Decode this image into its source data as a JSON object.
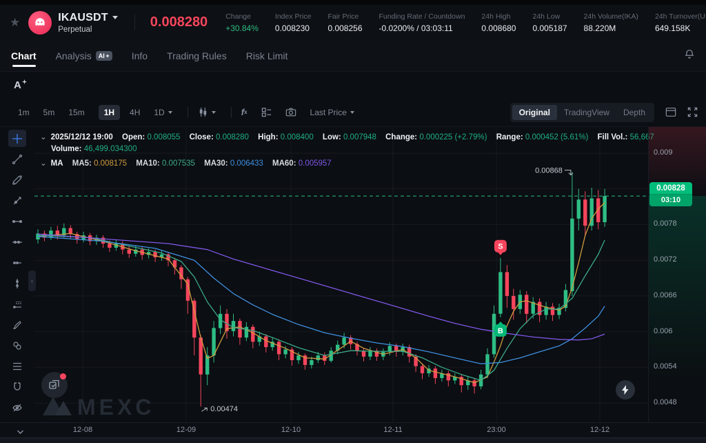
{
  "header": {
    "symbol": "IKAUSDT",
    "market_type": "Perpetual",
    "last_price": "0.008280",
    "stats": [
      {
        "label": "Change",
        "value": "+30.84%"
      },
      {
        "label": "Index Price",
        "value": "0.008230"
      },
      {
        "label": "Fair Price",
        "value": "0.008256"
      },
      {
        "label": "Funding Rate / Countdown",
        "value": "-0.0200% / 03:03:11"
      },
      {
        "label": "24h High",
        "value": "0.008680"
      },
      {
        "label": "24h Low",
        "value": "0.005187"
      },
      {
        "label": "24h Volume(IKA)",
        "value": "88.220M"
      },
      {
        "label": "24h Turnover(USDT)",
        "value": "649.158K"
      }
    ]
  },
  "tabs": {
    "items": [
      "Chart",
      "Analysis",
      "Info",
      "Trading Rules",
      "Risk Limit"
    ],
    "active": "Chart",
    "ai_badge": "AI"
  },
  "toolbar": {
    "timeframes": [
      "1m",
      "5m",
      "15m",
      "1H",
      "4H",
      "1D"
    ],
    "active_timeframe": "1H",
    "price_source": "Last Price",
    "view_modes": [
      "Original",
      "TradingView",
      "Depth"
    ],
    "active_view": "Original"
  },
  "ohlc": {
    "datetime": "2025/12/12 19:00",
    "items": [
      {
        "label": "Open:",
        "value": "0.008055"
      },
      {
        "label": "Close:",
        "value": "0.008280"
      },
      {
        "label": "High:",
        "value": "0.008400"
      },
      {
        "label": "Low:",
        "value": "0.007948"
      },
      {
        "label": "Change:",
        "value": "0.000225 (+2.79%)"
      },
      {
        "label": "Range:",
        "value": "0.000452 (5.61%)"
      },
      {
        "label": "Fill Vol.:",
        "value": "56,667"
      }
    ],
    "volume_label": "Volume:",
    "volume_value": "46,499.034300"
  },
  "ma_legend": {
    "title": "MA",
    "items": [
      {
        "label": "MA5:",
        "value": "0.008175",
        "color": "#cf9b3f"
      },
      {
        "label": "MA10:",
        "value": "0.007535",
        "color": "#3cab8a"
      },
      {
        "label": "MA30:",
        "value": "0.006433",
        "color": "#3f8fe0"
      },
      {
        "label": "MA60:",
        "value": "0.005957",
        "color": "#7e57e6"
      }
    ]
  },
  "price_axis_badge": {
    "price": "0.00828",
    "countdown": "03:10"
  },
  "watermark": "MEXC",
  "chart_data": {
    "type": "candlestick",
    "symbol": "IKAUSDT",
    "timeframe": "1H",
    "current_price": 0.00828,
    "high_annotation": 0.00868,
    "low_annotation": 0.00474,
    "up_color": "#2ebd85",
    "down_color": "#f5455c",
    "price_line_color": "#2ebd85",
    "y_axis": {
      "ticks": [
        {
          "label": "0.009",
          "price": 0.009
        },
        {
          "label": "0.0078",
          "price": 0.0078
        },
        {
          "label": "0.0072",
          "price": 0.0072
        },
        {
          "label": "0.0066",
          "price": 0.0066
        },
        {
          "label": "0.006",
          "price": 0.006
        },
        {
          "label": "0.0054",
          "price": 0.0054
        },
        {
          "label": "0.0048",
          "price": 0.0048
        }
      ],
      "gridline_prices": [
        0.009,
        0.0084,
        0.0078,
        0.0072,
        0.0066,
        0.006,
        0.0054,
        0.0048
      ]
    },
    "x_axis": {
      "labels": [
        "12-08",
        "12-09",
        "12-10",
        "12-11",
        "23:00",
        "12-12"
      ]
    },
    "candles": {
      "order": [
        "open",
        "close",
        "low",
        "high"
      ],
      "values": [
        [
          0.00755,
          0.00765,
          0.00748,
          0.00772
        ],
        [
          0.00765,
          0.00758,
          0.00752,
          0.0077
        ],
        [
          0.00758,
          0.0077,
          0.00754,
          0.00776
        ],
        [
          0.0077,
          0.00762,
          0.00755,
          0.00778
        ],
        [
          0.00762,
          0.00774,
          0.00758,
          0.00782
        ],
        [
          0.00774,
          0.00764,
          0.00757,
          0.00779
        ],
        [
          0.00764,
          0.00755,
          0.00748,
          0.00768
        ],
        [
          0.00755,
          0.00762,
          0.0075,
          0.00768
        ],
        [
          0.00762,
          0.00752,
          0.00745,
          0.00766
        ],
        [
          0.00752,
          0.00758,
          0.00746,
          0.00763
        ],
        [
          0.00758,
          0.00748,
          0.00741,
          0.00762
        ],
        [
          0.00748,
          0.00741,
          0.00734,
          0.00753
        ],
        [
          0.00741,
          0.00748,
          0.00736,
          0.00754
        ],
        [
          0.00748,
          0.00738,
          0.0073,
          0.00752
        ],
        [
          0.00738,
          0.00731,
          0.00724,
          0.00743
        ],
        [
          0.00731,
          0.00738,
          0.00726,
          0.00744
        ],
        [
          0.00738,
          0.00729,
          0.00721,
          0.00742
        ],
        [
          0.00729,
          0.00734,
          0.00723,
          0.0074
        ],
        [
          0.00734,
          0.00725,
          0.00717,
          0.00738
        ],
        [
          0.00725,
          0.0073,
          0.00719,
          0.00736
        ],
        [
          0.0073,
          0.0072,
          0.0071,
          0.00734
        ],
        [
          0.0072,
          0.00708,
          0.00696,
          0.00724
        ],
        [
          0.00708,
          0.00688,
          0.00672,
          0.00712
        ],
        [
          0.00688,
          0.00652,
          0.0063,
          0.00692
        ],
        [
          0.00652,
          0.0059,
          0.0056,
          0.00656
        ],
        [
          0.0059,
          0.00528,
          0.00474,
          0.00594
        ],
        [
          0.00528,
          0.0056,
          0.0051,
          0.00574
        ],
        [
          0.0056,
          0.00606,
          0.00548,
          0.00618
        ],
        [
          0.00606,
          0.0063,
          0.00596,
          0.00644
        ],
        [
          0.0063,
          0.00601,
          0.00588,
          0.00638
        ],
        [
          0.00601,
          0.00618,
          0.00592,
          0.0063
        ],
        [
          0.00618,
          0.0059,
          0.00578,
          0.00622
        ],
        [
          0.0059,
          0.00608,
          0.00584,
          0.00616
        ],
        [
          0.00608,
          0.00583,
          0.00572,
          0.00612
        ],
        [
          0.00583,
          0.00592,
          0.00576,
          0.006
        ],
        [
          0.00592,
          0.00574,
          0.00565,
          0.00596
        ],
        [
          0.00574,
          0.00583,
          0.00568,
          0.0059
        ],
        [
          0.00583,
          0.00562,
          0.00552,
          0.00587
        ],
        [
          0.00562,
          0.0057,
          0.00555,
          0.00576
        ],
        [
          0.0057,
          0.00552,
          0.00543,
          0.00574
        ],
        [
          0.00552,
          0.0056,
          0.00546,
          0.00566
        ],
        [
          0.0056,
          0.00544,
          0.00536,
          0.00563
        ],
        [
          0.00544,
          0.00552,
          0.00538,
          0.00558
        ],
        [
          0.00552,
          0.0056,
          0.00547,
          0.00566
        ],
        [
          0.0056,
          0.00551,
          0.00544,
          0.00565
        ],
        [
          0.00551,
          0.00568,
          0.00548,
          0.00574
        ],
        [
          0.00568,
          0.00578,
          0.00562,
          0.00585
        ],
        [
          0.00578,
          0.0059,
          0.00572,
          0.00598
        ],
        [
          0.0059,
          0.00579,
          0.0057,
          0.00594
        ],
        [
          0.00579,
          0.00568,
          0.0056,
          0.00583
        ],
        [
          0.00568,
          0.00558,
          0.0055,
          0.00572
        ],
        [
          0.00558,
          0.00568,
          0.00552,
          0.00574
        ],
        [
          0.00568,
          0.00558,
          0.00551,
          0.00572
        ],
        [
          0.00558,
          0.00566,
          0.00552,
          0.00572
        ],
        [
          0.00566,
          0.00576,
          0.0056,
          0.00582
        ],
        [
          0.00576,
          0.00566,
          0.00558,
          0.0058
        ],
        [
          0.00566,
          0.00574,
          0.0056,
          0.0058
        ],
        [
          0.00574,
          0.00558,
          0.00548,
          0.00578
        ],
        [
          0.00558,
          0.00542,
          0.00532,
          0.00562
        ],
        [
          0.00542,
          0.0053,
          0.0052,
          0.00546
        ],
        [
          0.0053,
          0.00538,
          0.00524,
          0.00544
        ],
        [
          0.00538,
          0.00522,
          0.00512,
          0.00542
        ],
        [
          0.00522,
          0.0053,
          0.00516,
          0.00536
        ],
        [
          0.0053,
          0.00518,
          0.00508,
          0.00534
        ],
        [
          0.00518,
          0.00524,
          0.00512,
          0.0053
        ],
        [
          0.00524,
          0.0051,
          0.00498,
          0.00528
        ],
        [
          0.0051,
          0.00518,
          0.00502,
          0.00524
        ],
        [
          0.00518,
          0.00508,
          0.00496,
          0.00522
        ],
        [
          0.00508,
          0.00528,
          0.00503,
          0.00536
        ],
        [
          0.00528,
          0.00562,
          0.00522,
          0.00572
        ],
        [
          0.00562,
          0.0063,
          0.00556,
          0.00644
        ],
        [
          0.0063,
          0.007,
          0.00624,
          0.00724
        ],
        [
          0.007,
          0.0066,
          0.0064,
          0.00712
        ],
        [
          0.0066,
          0.00638,
          0.0062,
          0.00672
        ],
        [
          0.00638,
          0.00662,
          0.0063,
          0.0067
        ],
        [
          0.00662,
          0.0063,
          0.00614,
          0.00668
        ],
        [
          0.0063,
          0.0065,
          0.00622,
          0.00658
        ],
        [
          0.0065,
          0.00628,
          0.00616,
          0.00656
        ],
        [
          0.00628,
          0.00642,
          0.0062,
          0.0065
        ],
        [
          0.00642,
          0.00628,
          0.00618,
          0.00648
        ],
        [
          0.00628,
          0.0064,
          0.00621,
          0.00647
        ],
        [
          0.0064,
          0.0067,
          0.00634,
          0.0068
        ],
        [
          0.00668,
          0.0079,
          0.0066,
          0.00868
        ],
        [
          0.0079,
          0.00822,
          0.0077,
          0.0084
        ],
        [
          0.00822,
          0.00778,
          0.0076,
          0.00836
        ],
        [
          0.00778,
          0.00824,
          0.0077,
          0.00842
        ],
        [
          0.00824,
          0.00784,
          0.00772,
          0.00838
        ],
        [
          0.00784,
          0.00828,
          0.00776,
          0.0084
        ]
      ]
    },
    "ma_series": [
      {
        "name": "MA5",
        "color": "#cf9b3f",
        "points": [
          [
            0,
            0.0076
          ],
          [
            5,
            0.00765
          ],
          [
            10,
            0.00752
          ],
          [
            15,
            0.00736
          ],
          [
            20,
            0.00722
          ],
          [
            23,
            0.0068
          ],
          [
            25,
            0.0059
          ],
          [
            26,
            0.00555
          ],
          [
            27,
            0.0056
          ],
          [
            29,
            0.00605
          ],
          [
            31,
            0.00608
          ],
          [
            33,
            0.00598
          ],
          [
            35,
            0.00585
          ],
          [
            38,
            0.00572
          ],
          [
            41,
            0.00556
          ],
          [
            44,
            0.00554
          ],
          [
            47,
            0.00576
          ],
          [
            48,
            0.00584
          ],
          [
            50,
            0.00572
          ],
          [
            53,
            0.00562
          ],
          [
            56,
            0.0057
          ],
          [
            58,
            0.00556
          ],
          [
            60,
            0.00535
          ],
          [
            63,
            0.00527
          ],
          [
            65,
            0.00521
          ],
          [
            67,
            0.00514
          ],
          [
            69,
            0.00524
          ],
          [
            70,
            0.00549
          ],
          [
            71,
            0.00576
          ],
          [
            72,
            0.0061
          ],
          [
            73,
            0.00634
          ],
          [
            74,
            0.0065
          ],
          [
            75,
            0.00652
          ],
          [
            76,
            0.00648
          ],
          [
            78,
            0.00641
          ],
          [
            80,
            0.00636
          ],
          [
            81,
            0.00643
          ],
          [
            82,
            0.00674
          ],
          [
            83,
            0.00716
          ],
          [
            84,
            0.00762
          ],
          [
            85,
            0.0079
          ],
          [
            86,
            0.00806
          ],
          [
            87,
            0.00817
          ]
        ]
      },
      {
        "name": "MA10",
        "color": "#3cab8a",
        "points": [
          [
            0,
            0.00762
          ],
          [
            8,
            0.00758
          ],
          [
            14,
            0.00744
          ],
          [
            19,
            0.00732
          ],
          [
            22,
            0.00718
          ],
          [
            24,
            0.00692
          ],
          [
            26,
            0.0065
          ],
          [
            28,
            0.0062
          ],
          [
            30,
            0.00607
          ],
          [
            33,
            0.00602
          ],
          [
            36,
            0.0059
          ],
          [
            40,
            0.00573
          ],
          [
            44,
            0.0056
          ],
          [
            48,
            0.00568
          ],
          [
            52,
            0.00567
          ],
          [
            56,
            0.00567
          ],
          [
            59,
            0.00556
          ],
          [
            62,
            0.0054
          ],
          [
            65,
            0.00528
          ],
          [
            68,
            0.00518
          ],
          [
            70,
            0.00535
          ],
          [
            72,
            0.00572
          ],
          [
            74,
            0.00605
          ],
          [
            76,
            0.00627
          ],
          [
            78,
            0.00638
          ],
          [
            80,
            0.00638
          ],
          [
            82,
            0.00656
          ],
          [
            84,
            0.00694
          ],
          [
            86,
            0.0073
          ],
          [
            87,
            0.00754
          ]
        ]
      },
      {
        "name": "MA30",
        "color": "#3f8fe0",
        "points": [
          [
            0,
            0.0076
          ],
          [
            10,
            0.00752
          ],
          [
            18,
            0.0074
          ],
          [
            24,
            0.0072
          ],
          [
            27,
            0.0069
          ],
          [
            30,
            0.00664
          ],
          [
            33,
            0.00645
          ],
          [
            36,
            0.00629
          ],
          [
            40,
            0.00612
          ],
          [
            44,
            0.00598
          ],
          [
            48,
            0.00589
          ],
          [
            52,
            0.00581
          ],
          [
            56,
            0.00575
          ],
          [
            60,
            0.00566
          ],
          [
            64,
            0.00556
          ],
          [
            68,
            0.00546
          ],
          [
            71,
            0.00548
          ],
          [
            74,
            0.00556
          ],
          [
            77,
            0.00566
          ],
          [
            80,
            0.00576
          ],
          [
            82,
            0.00588
          ],
          [
            84,
            0.00606
          ],
          [
            86,
            0.00626
          ],
          [
            87,
            0.00643
          ]
        ]
      },
      {
        "name": "MA60",
        "color": "#7e57e6",
        "points": [
          [
            0,
            0.00764
          ],
          [
            10,
            0.00756
          ],
          [
            20,
            0.00748
          ],
          [
            26,
            0.00738
          ],
          [
            30,
            0.00722
          ],
          [
            35,
            0.00706
          ],
          [
            40,
            0.0069
          ],
          [
            45,
            0.00674
          ],
          [
            50,
            0.00658
          ],
          [
            55,
            0.00642
          ],
          [
            60,
            0.00626
          ],
          [
            64,
            0.00614
          ],
          [
            68,
            0.00604
          ],
          [
            72,
            0.00597
          ],
          [
            76,
            0.00591
          ],
          [
            80,
            0.00587
          ],
          [
            83,
            0.00586
          ],
          [
            85,
            0.00588
          ],
          [
            87,
            0.00596
          ]
        ]
      }
    ],
    "trade_markers": [
      {
        "type": "sell",
        "label": "S",
        "candle_index": 71,
        "anchor_price": 0.00724,
        "side": "above",
        "color": "#f5455c"
      },
      {
        "type": "buy",
        "label": "B",
        "candle_index": 71,
        "anchor_price": 0.00624,
        "side": "below",
        "color": "#00b877"
      }
    ]
  }
}
